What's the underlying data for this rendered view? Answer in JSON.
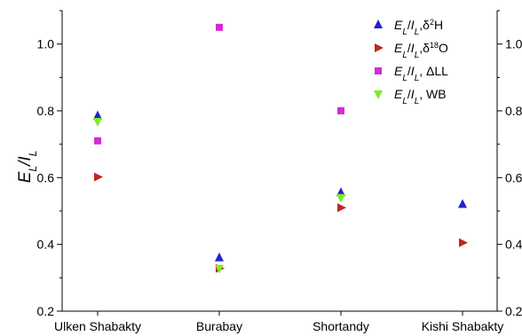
{
  "chart_data": {
    "type": "scatter",
    "categories": [
      "Ulken Shabakty",
      "Burabay",
      "Shortandy",
      "Kishi Shabakty"
    ],
    "ylim": [
      0.2,
      1.1
    ],
    "yticks": [
      0.2,
      0.4,
      0.6,
      0.8,
      1.0
    ],
    "ytick_labels": [
      "0.2",
      "0.4",
      "0.6",
      "0.8",
      "1.0"
    ],
    "right_ytick_labels": [
      "0.2",
      "0.4",
      "0.6",
      "0.8",
      "1.0"
    ],
    "ylabel": "E_L/I_L",
    "ylabel_parts": {
      "e": "E",
      "sub1": "L",
      "slash": "/I",
      "sub2": "L"
    },
    "grid": false,
    "legend_position": "top-right",
    "series": [
      {
        "name": "E_L/I_L,δ²H",
        "label_suffix": ",δ",
        "label_sup": "2",
        "label_tail": "H",
        "marker": "triangle-up",
        "color": "#2222cc",
        "values": [
          0.785,
          0.36,
          0.555,
          0.52
        ]
      },
      {
        "name": "E_L/I_L,δ¹⁸O",
        "label_suffix": ",δ",
        "label_sup": "18",
        "label_tail": "O",
        "marker": "triangle-right",
        "color": "#c0261f",
        "values": [
          0.602,
          0.328,
          0.51,
          0.405
        ]
      },
      {
        "name": "E_L/I_L, ΔLL",
        "label_suffix": ", ΔLL",
        "label_sup": "",
        "label_tail": "",
        "marker": "square",
        "color": "#d52bd5",
        "values": [
          0.71,
          1.05,
          0.8,
          null
        ]
      },
      {
        "name": "E_L/I_L, WB",
        "label_suffix": ", WB",
        "label_sup": "",
        "label_tail": "",
        "marker": "triangle-down",
        "color": "#7dea2d",
        "values": [
          0.768,
          0.328,
          0.54,
          null
        ]
      }
    ]
  }
}
